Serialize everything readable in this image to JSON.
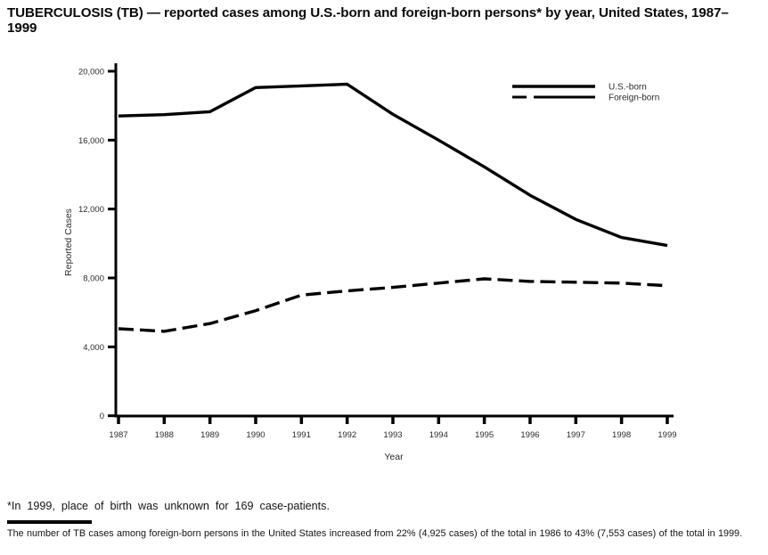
{
  "title": "TUBERCULOSIS (TB) — reported cases among U.S.-born and foreign-born persons* by year, United States, 1987–1999",
  "footnote": "*In 1999, place of birth was unknown for 169 case-patients.",
  "caption": "The number of TB cases among foreign-born persons in the United States increased from 22% (4,925 cases) of the total in 1986 to 43% (7,553 cases) of the total in 1999.",
  "chart_data": {
    "type": "line",
    "x": [
      1987,
      1988,
      1989,
      1990,
      1991,
      1992,
      1993,
      1994,
      1995,
      1996,
      1997,
      1998,
      1999
    ],
    "series": [
      {
        "name": "U.S.-born",
        "style": "solid",
        "values": [
          17400,
          17480,
          17650,
          19050,
          19150,
          19250,
          17500,
          16000,
          14450,
          12800,
          11400,
          10350,
          9880
        ]
      },
      {
        "name": "Foreign-born",
        "style": "dashed",
        "values": [
          5050,
          4900,
          5350,
          6100,
          7000,
          7250,
          7450,
          7700,
          7950,
          7800,
          7750,
          7700,
          7550
        ]
      }
    ],
    "xlabel": "Year",
    "ylabel": "Reported Cases",
    "ylim": [
      0,
      20000
    ],
    "yticks": [
      0,
      4000,
      8000,
      12000,
      16000,
      20000
    ],
    "grid": false,
    "legend_position": "top-right",
    "line_color": "#000000",
    "tick_label_color": "#2b2b2b"
  }
}
